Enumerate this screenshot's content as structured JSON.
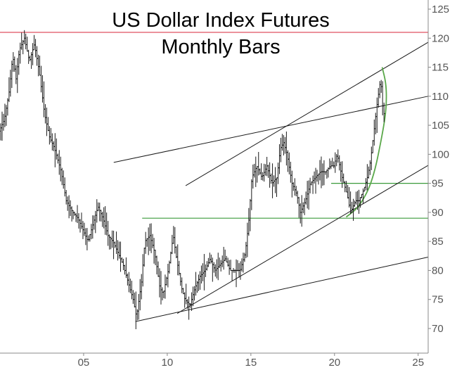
{
  "chart_data": {
    "type": "ohlc",
    "title": "US Dollar Index Futures",
    "subtitle": "Monthly Bars",
    "xlabel": "",
    "ylabel": "",
    "xlim": [
      2000.0,
      2025.6
    ],
    "ylim": [
      66,
      127
    ],
    "x_ticks": [
      {
        "value": 2005,
        "label": "05"
      },
      {
        "value": 2010,
        "label": "10"
      },
      {
        "value": 2015,
        "label": "15"
      },
      {
        "value": 2020,
        "label": "20"
      },
      {
        "value": 2025,
        "label": "25"
      }
    ],
    "y_ticks": [
      {
        "value": 70,
        "label": "70"
      },
      {
        "value": 75,
        "label": "75"
      },
      {
        "value": 80,
        "label": "80"
      },
      {
        "value": 85,
        "label": "85"
      },
      {
        "value": 90,
        "label": "90"
      },
      {
        "value": 95,
        "label": "95"
      },
      {
        "value": 100,
        "label": "100"
      },
      {
        "value": 105,
        "label": "105"
      },
      {
        "value": 110,
        "label": "110"
      },
      {
        "value": 115,
        "label": "115"
      },
      {
        "value": 120,
        "label": "120"
      },
      {
        "value": 125,
        "label": "125"
      }
    ],
    "grid": false,
    "price_path": [
      [
        2000.0,
        104
      ],
      [
        2000.3,
        106
      ],
      [
        2000.6,
        111
      ],
      [
        2000.8,
        117
      ],
      [
        2001.0,
        113
      ],
      [
        2001.2,
        118
      ],
      [
        2001.5,
        120
      ],
      [
        2001.8,
        116
      ],
      [
        2002.1,
        119
      ],
      [
        2002.4,
        114
      ],
      [
        2002.7,
        107
      ],
      [
        2003.0,
        103
      ],
      [
        2003.3,
        101
      ],
      [
        2003.7,
        97
      ],
      [
        2004.0,
        92
      ],
      [
        2004.4,
        90
      ],
      [
        2004.7,
        89
      ],
      [
        2005.0,
        87
      ],
      [
        2005.3,
        85
      ],
      [
        2005.6,
        88
      ],
      [
        2005.9,
        91
      ],
      [
        2006.2,
        89
      ],
      [
        2006.5,
        86
      ],
      [
        2006.8,
        85
      ],
      [
        2007.1,
        83
      ],
      [
        2007.4,
        81
      ],
      [
        2007.7,
        78
      ],
      [
        2008.0,
        75
      ],
      [
        2008.2,
        72
      ],
      [
        2008.5,
        78
      ],
      [
        2008.7,
        85
      ],
      [
        2009.0,
        86
      ],
      [
        2009.3,
        83
      ],
      [
        2009.6,
        77
      ],
      [
        2009.8,
        76
      ],
      [
        2010.1,
        80
      ],
      [
        2010.4,
        86
      ],
      [
        2010.6,
        82
      ],
      [
        2010.9,
        77
      ],
      [
        2011.1,
        75
      ],
      [
        2011.4,
        74
      ],
      [
        2011.7,
        77
      ],
      [
        2012.0,
        79
      ],
      [
        2012.3,
        80
      ],
      [
        2012.6,
        82
      ],
      [
        2012.9,
        80
      ],
      [
        2013.2,
        81
      ],
      [
        2013.5,
        82
      ],
      [
        2013.8,
        80
      ],
      [
        2014.1,
        80
      ],
      [
        2014.4,
        80
      ],
      [
        2014.7,
        83
      ],
      [
        2014.9,
        88
      ],
      [
        2015.1,
        96
      ],
      [
        2015.4,
        98
      ],
      [
        2015.7,
        96
      ],
      [
        2016.0,
        98
      ],
      [
        2016.3,
        95
      ],
      [
        2016.6,
        96
      ],
      [
        2016.8,
        101
      ],
      [
        2017.0,
        102
      ],
      [
        2017.2,
        100
      ],
      [
        2017.5,
        95
      ],
      [
        2017.8,
        93
      ],
      [
        2018.0,
        90
      ],
      [
        2018.3,
        92
      ],
      [
        2018.6,
        95
      ],
      [
        2018.9,
        96
      ],
      [
        2019.2,
        97
      ],
      [
        2019.5,
        97
      ],
      [
        2019.8,
        98
      ],
      [
        2020.0,
        98
      ],
      [
        2020.2,
        100
      ],
      [
        2020.5,
        96
      ],
      [
        2020.8,
        93
      ],
      [
        2021.0,
        90
      ],
      [
        2021.3,
        92
      ],
      [
        2021.5,
        92
      ],
      [
        2021.8,
        94
      ],
      [
        2022.0,
        96
      ],
      [
        2022.2,
        99
      ],
      [
        2022.4,
        104
      ],
      [
        2022.6,
        109
      ],
      [
        2022.8,
        113
      ],
      [
        2022.95,
        107
      ]
    ],
    "annotations": [
      {
        "kind": "horizontal",
        "y": 121,
        "x_range": [
          2000.0,
          2025.6
        ],
        "color": "#e05060"
      },
      {
        "kind": "horizontal",
        "y": 89,
        "x_range": [
          2008.5,
          2025.6
        ],
        "color": "#3a9a3a"
      },
      {
        "kind": "horizontal",
        "y": 95,
        "x_range": [
          2019.8,
          2025.6
        ],
        "color": "#3a9a3a"
      },
      {
        "kind": "trendline",
        "from": [
          2008.1,
          71.2
        ],
        "to": [
          2025.6,
          82.3
        ],
        "color": "#1a1a1a"
      },
      {
        "kind": "trendline",
        "from": [
          2010.6,
          72.6
        ],
        "to": [
          2025.6,
          98.1
        ],
        "color": "#1a1a1a"
      },
      {
        "kind": "trendline",
        "from": [
          2006.8,
          98.6
        ],
        "to": [
          2025.6,
          110.0
        ],
        "color": "#1a1a1a"
      },
      {
        "kind": "trendline",
        "from": [
          2011.1,
          94.6
        ],
        "to": [
          2025.6,
          119.3
        ],
        "color": "#1a1a1a"
      },
      {
        "kind": "curve",
        "points": [
          [
            2020.7,
            89.2
          ],
          [
            2021.5,
            91.0
          ],
          [
            2022.3,
            95.5
          ],
          [
            2022.9,
            104.0
          ],
          [
            2023.1,
            108.0
          ],
          [
            2023.1,
            112.0
          ],
          [
            2022.85,
            115.0
          ]
        ],
        "color": "#5aa84a"
      }
    ],
    "colors": {
      "bars": "#1a1a1a",
      "axis": "#888888",
      "tick_labels": "#555555"
    }
  }
}
